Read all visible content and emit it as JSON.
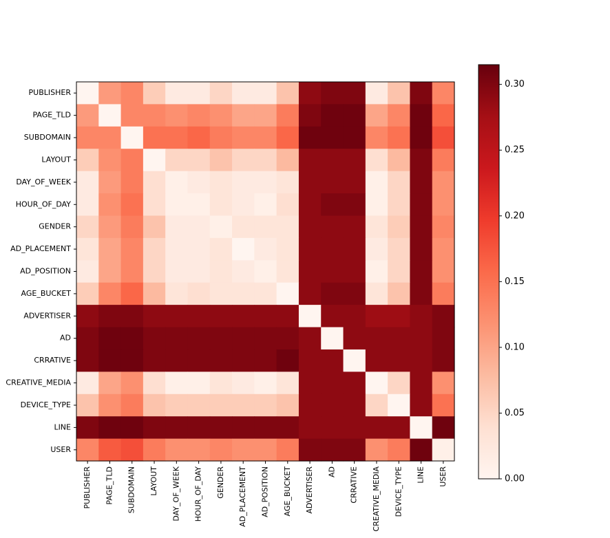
{
  "chart_data": {
    "type": "heatmap",
    "title": "",
    "xlabel": "",
    "ylabel": "",
    "labels": [
      "PUBLISHER",
      "PAGE_TLD",
      "SUBDOMAIN",
      "LAYOUT",
      "DAY_OF_WEEK",
      "HOUR_OF_DAY",
      "GENDER",
      "AD_PLACEMENT",
      "AD_POSITION",
      "AGE_BUCKET",
      "ADVERTISER",
      "AD",
      "CRRATIVE",
      "CREATIVE_MEDIA",
      "DEVICE_TYPE",
      "LINE",
      "USER"
    ],
    "matrix": [
      [
        0.0,
        0.11,
        0.13,
        0.06,
        0.02,
        0.02,
        0.05,
        0.02,
        0.02,
        0.07,
        0.29,
        0.3,
        0.3,
        0.02,
        0.07,
        0.3,
        0.13
      ],
      [
        0.11,
        0.0,
        0.13,
        0.13,
        0.12,
        0.13,
        0.12,
        0.1,
        0.1,
        0.14,
        0.3,
        0.31,
        0.31,
        0.1,
        0.13,
        0.31,
        0.16
      ],
      [
        0.13,
        0.13,
        0.0,
        0.15,
        0.15,
        0.16,
        0.14,
        0.13,
        0.13,
        0.16,
        0.31,
        0.31,
        0.31,
        0.13,
        0.15,
        0.31,
        0.18
      ],
      [
        0.06,
        0.12,
        0.14,
        0.0,
        0.05,
        0.05,
        0.07,
        0.05,
        0.05,
        0.08,
        0.29,
        0.29,
        0.29,
        0.04,
        0.08,
        0.3,
        0.14
      ],
      [
        0.02,
        0.11,
        0.14,
        0.04,
        0.01,
        0.02,
        0.03,
        0.02,
        0.02,
        0.03,
        0.29,
        0.29,
        0.29,
        0.01,
        0.05,
        0.3,
        0.12
      ],
      [
        0.02,
        0.12,
        0.15,
        0.04,
        0.01,
        0.01,
        0.03,
        0.02,
        0.01,
        0.04,
        0.29,
        0.3,
        0.3,
        0.01,
        0.05,
        0.3,
        0.12
      ],
      [
        0.05,
        0.11,
        0.14,
        0.07,
        0.02,
        0.02,
        0.01,
        0.03,
        0.03,
        0.03,
        0.29,
        0.29,
        0.29,
        0.03,
        0.06,
        0.3,
        0.13
      ],
      [
        0.03,
        0.1,
        0.13,
        0.05,
        0.02,
        0.02,
        0.03,
        0.0,
        0.02,
        0.03,
        0.29,
        0.29,
        0.29,
        0.02,
        0.05,
        0.3,
        0.12
      ],
      [
        0.02,
        0.1,
        0.13,
        0.05,
        0.02,
        0.02,
        0.03,
        0.02,
        0.01,
        0.03,
        0.29,
        0.29,
        0.29,
        0.01,
        0.05,
        0.3,
        0.12
      ],
      [
        0.06,
        0.13,
        0.16,
        0.08,
        0.03,
        0.04,
        0.03,
        0.03,
        0.03,
        0.0,
        0.29,
        0.3,
        0.3,
        0.03,
        0.07,
        0.3,
        0.14
      ],
      [
        0.29,
        0.3,
        0.3,
        0.29,
        0.29,
        0.29,
        0.29,
        0.29,
        0.29,
        0.29,
        0.0,
        0.29,
        0.29,
        0.28,
        0.28,
        0.29,
        0.3
      ],
      [
        0.3,
        0.31,
        0.31,
        0.3,
        0.3,
        0.3,
        0.3,
        0.3,
        0.3,
        0.3,
        0.29,
        0.0,
        0.29,
        0.29,
        0.29,
        0.29,
        0.3
      ],
      [
        0.3,
        0.31,
        0.31,
        0.3,
        0.3,
        0.3,
        0.3,
        0.3,
        0.3,
        0.31,
        0.29,
        0.29,
        0.0,
        0.29,
        0.29,
        0.29,
        0.3
      ],
      [
        0.02,
        0.1,
        0.12,
        0.04,
        0.01,
        0.01,
        0.03,
        0.02,
        0.01,
        0.03,
        0.29,
        0.29,
        0.29,
        0.0,
        0.05,
        0.29,
        0.12
      ],
      [
        0.07,
        0.12,
        0.14,
        0.07,
        0.06,
        0.06,
        0.06,
        0.06,
        0.06,
        0.07,
        0.29,
        0.29,
        0.29,
        0.05,
        0.0,
        0.29,
        0.15
      ],
      [
        0.3,
        0.31,
        0.31,
        0.3,
        0.3,
        0.3,
        0.3,
        0.3,
        0.3,
        0.3,
        0.29,
        0.29,
        0.29,
        0.29,
        0.29,
        0.0,
        0.31
      ],
      [
        0.13,
        0.17,
        0.18,
        0.14,
        0.12,
        0.12,
        0.13,
        0.12,
        0.12,
        0.14,
        0.3,
        0.3,
        0.3,
        0.12,
        0.14,
        0.31,
        0.01
      ]
    ],
    "colorbar": {
      "vmin": 0.0,
      "vmax": 0.315,
      "ticks": [
        0.0,
        0.05,
        0.1,
        0.15,
        0.2,
        0.25,
        0.3
      ],
      "tick_labels": [
        "0.00",
        "0.05",
        "0.10",
        "0.15",
        "0.20",
        "0.25",
        "0.30"
      ]
    },
    "colormap": "Reds",
    "colors": [
      "#fff5f0",
      "#fee0d2",
      "#fcbba1",
      "#fc9272",
      "#fb6a4a",
      "#ef3b2c",
      "#cb181d",
      "#a50f15",
      "#67000d"
    ]
  }
}
